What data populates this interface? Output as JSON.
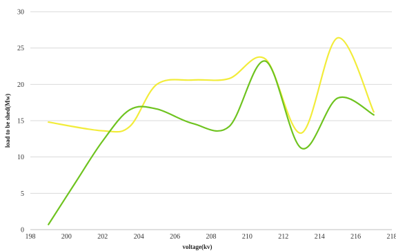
{
  "chart_data": {
    "type": "line",
    "title": "",
    "xlabel": "voltage(kv)",
    "ylabel": "load to be shed(Mw)",
    "xlim": [
      198,
      218
    ],
    "ylim": [
      0,
      30
    ],
    "x_ticks": [
      198,
      200,
      202,
      204,
      206,
      208,
      210,
      212,
      214,
      216,
      218
    ],
    "y_ticks": [
      0,
      5,
      10,
      15,
      20,
      25,
      30
    ],
    "grid": "horizontal",
    "legend": "none",
    "series": [
      {
        "color": "#f2ec3a",
        "x": [
          199,
          202,
          203.5,
          205,
          207,
          209,
          211,
          213,
          215,
          217
        ],
        "y": [
          14.8,
          13.6,
          14.2,
          20.0,
          20.6,
          20.8,
          23.5,
          13.3,
          26.4,
          16.2
        ]
      },
      {
        "color": "#6ec31f",
        "x": [
          199,
          200.5,
          202,
          203.5,
          205,
          207,
          209,
          211,
          213,
          215,
          217
        ],
        "y": [
          0.7,
          6.5,
          12.2,
          16.5,
          16.6,
          14.6,
          14.2,
          23.2,
          11.2,
          18.1,
          15.8
        ]
      }
    ]
  }
}
